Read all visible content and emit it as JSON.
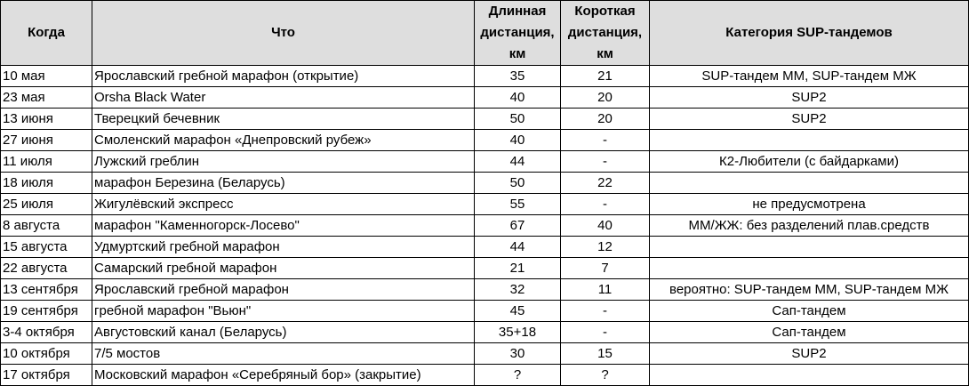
{
  "headers": {
    "when": "Когда",
    "what": "Что",
    "long": "Длинная дистанция, км",
    "short": "Короткая дистанция, км",
    "category": "Категория SUP-тандемов"
  },
  "rows": [
    {
      "when": "10 мая",
      "what": "Ярославский гребной марафон (открытие)",
      "long": "35",
      "short": "21",
      "category": "SUP-тандем ММ, SUP-тандем МЖ"
    },
    {
      "when": "23 мая",
      "what": "Orsha Black Water",
      "long": "40",
      "short": "20",
      "category": "SUP2"
    },
    {
      "when": "13 июня",
      "what": "Тверецкий бечевник",
      "long": "50",
      "short": "20",
      "category": "SUP2"
    },
    {
      "when": "27 июня",
      "what": "Смоленский марафон «Днепровский рубеж»",
      "long": "40",
      "short": "-",
      "category": ""
    },
    {
      "when": "11 июля",
      "what": "Лужский греблин",
      "long": "44",
      "short": "-",
      "category": "К2-Любители (с байдарками)"
    },
    {
      "when": "18 июля",
      "what": "марафон Березина (Беларусь)",
      "long": "50",
      "short": "22",
      "category": ""
    },
    {
      "when": "25 июля",
      "what": "Жигулёвский экспресс",
      "long": "55",
      "short": "-",
      "category": "не предусмотрена"
    },
    {
      "when": "8 августа",
      "what": "марафон \"Каменногорск-Лосево\"",
      "long": "67",
      "short": "40",
      "category": "ММ/ЖЖ: без разделений плав.средств"
    },
    {
      "when": "15 августа",
      "what": "Удмуртский гребной марафон",
      "long": "44",
      "short": "12",
      "category": ""
    },
    {
      "when": "22 августа",
      "what": "Самарский гребной марафон",
      "long": "21",
      "short": "7",
      "category": ""
    },
    {
      "when": "13 сентября",
      "what": "Ярославский гребной марафон",
      "long": "32",
      "short": "11",
      "category": "вероятно: SUP-тандем ММ, SUP-тандем МЖ"
    },
    {
      "when": "19 сентября",
      "what": "гребной марафон \"Вьюн\"",
      "long": "45",
      "short": "-",
      "category": "Сап-тандем"
    },
    {
      "when": "3-4 октября",
      "what": "Августовский канал (Беларусь)",
      "long": "35+18",
      "short": "-",
      "category": "Сап-тандем"
    },
    {
      "when": "10 октября",
      "what": "7/5 мостов",
      "long": "30",
      "short": "15",
      "category": "SUP2"
    },
    {
      "when": "17 октября",
      "what": "Московский марафон «Серебряный бор» (закрытие)",
      "long": "?",
      "short": "?",
      "category": ""
    }
  ]
}
